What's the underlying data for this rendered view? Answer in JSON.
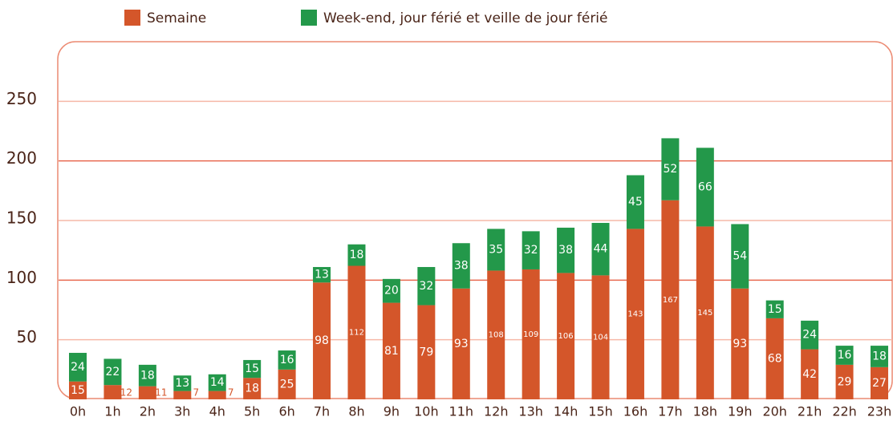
{
  "chart_data": {
    "type": "stacked-bar",
    "categories": [
      "0h",
      "1h",
      "2h",
      "3h",
      "4h",
      "5h",
      "6h",
      "7h",
      "8h",
      "9h",
      "10h",
      "11h",
      "12h",
      "13h",
      "14h",
      "15h",
      "16h",
      "17h",
      "18h",
      "19h",
      "20h",
      "21h",
      "22h",
      "23h"
    ],
    "series": [
      {
        "name": "Semaine",
        "color": "#d4562a",
        "values": [
          15,
          12,
          11,
          7,
          7,
          18,
          25,
          98,
          112,
          81,
          79,
          93,
          108,
          109,
          106,
          104,
          143,
          167,
          145,
          93,
          68,
          42,
          29,
          27
        ]
      },
      {
        "name": "Week-end, jour férié et veille de jour férié",
        "color": "#23984a",
        "values": [
          24,
          22,
          18,
          13,
          14,
          15,
          16,
          13,
          18,
          20,
          32,
          38,
          35,
          32,
          38,
          44,
          45,
          52,
          66,
          54,
          15,
          24,
          16,
          18
        ]
      }
    ],
    "ylim": [
      0,
      300
    ],
    "yticks": [
      50,
      100,
      150,
      200,
      250
    ],
    "grid": true,
    "legend": "top"
  }
}
